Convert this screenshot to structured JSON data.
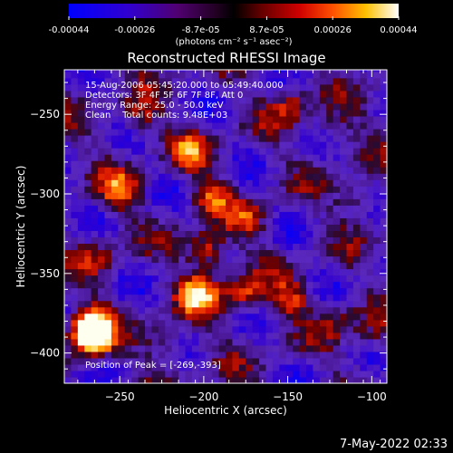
{
  "chart_data": {
    "type": "heatmap",
    "title": "Reconstructed RHESSI Image",
    "xlabel": "Heliocentric X (arcsec)",
    "ylabel": "Heliocentric Y (arcsec)",
    "xlim": [
      -283,
      -91
    ],
    "ylim": [
      -419,
      -222
    ],
    "x_ticks": [
      -250,
      -200,
      -150,
      -100
    ],
    "y_ticks": [
      -250,
      -300,
      -350,
      -400
    ],
    "colorbar": {
      "ticks": [
        "-0.00044",
        "-0.00026",
        "-8.7e-05",
        "8.7e-05",
        "0.00026",
        "0.00044"
      ],
      "range": [
        -0.00044,
        0.00044
      ],
      "units": "(photons cm⁻² s⁻¹ asec⁻²)"
    },
    "annotations": {
      "time_range": "15-Aug-2006 05:45:20.000 to 05:49:40.000",
      "detectors": "Detectors: 3F 4F 5F 6F 7F 8F, Att 0",
      "energy": "Energy Range: 25.0 - 50.0 keV",
      "clean": "Clean    Total counts: 9.48E+03",
      "peak": "Position of Peak = [-269,-393]"
    },
    "bright_sources": [
      {
        "x": -268,
        "y": -393,
        "level": 1.0
      },
      {
        "x": -270,
        "y": -383,
        "level": 0.85
      },
      {
        "x": -205,
        "y": -365,
        "level": 0.8
      },
      {
        "x": -200,
        "y": -338,
        "level": 0.75
      },
      {
        "x": -178,
        "y": -365,
        "level": 0.6
      },
      {
        "x": -252,
        "y": -300,
        "level": 0.55
      },
      {
        "x": -150,
        "y": -368,
        "level": 0.5
      },
      {
        "x": -198,
        "y": -303,
        "level": 0.55
      },
      {
        "x": -210,
        "y": -275,
        "level": 0.5
      },
      {
        "x": -240,
        "y": -255,
        "level": 0.45
      },
      {
        "x": -150,
        "y": -245,
        "level": 0.45
      },
      {
        "x": -125,
        "y": -262,
        "level": 0.35
      },
      {
        "x": -110,
        "y": -305,
        "level": 0.4
      },
      {
        "x": -120,
        "y": -380,
        "level": 0.35
      },
      {
        "x": -225,
        "y": -395,
        "level": 0.4
      },
      {
        "x": -100,
        "y": -390,
        "level": 0.35
      },
      {
        "x": -175,
        "y": -318,
        "level": 0.4
      },
      {
        "x": -265,
        "y": -340,
        "level": 0.35
      }
    ]
  },
  "footer": {
    "timestamp": "7-May-2022 02:33"
  }
}
